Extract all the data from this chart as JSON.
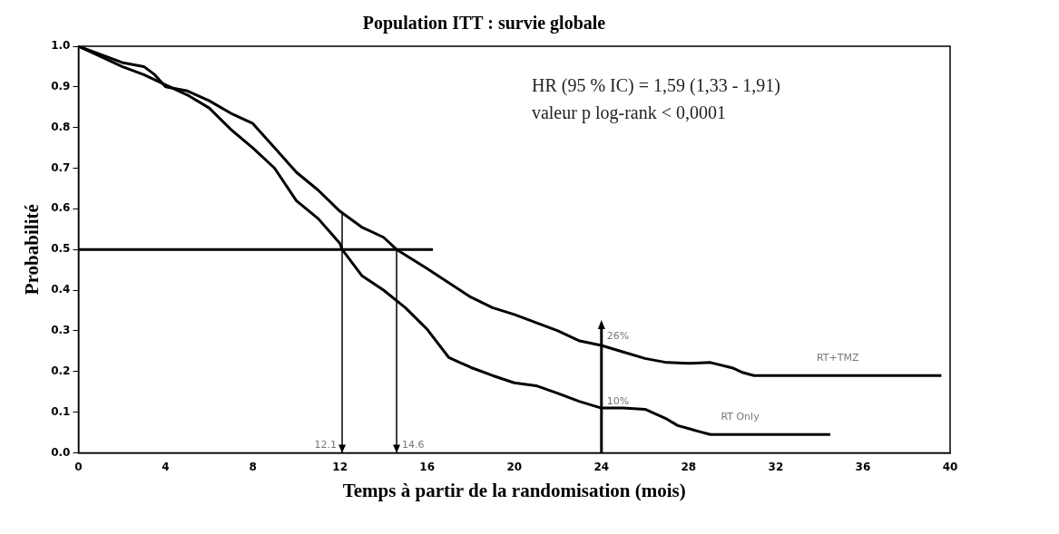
{
  "chart_data": {
    "type": "line",
    "title": "Population ITT : survie globale",
    "xlabel": "Temps à partir de la randomisation (mois)",
    "ylabel": "Probabilité",
    "xlim": [
      0,
      40
    ],
    "xticks": [
      0,
      4,
      8,
      12,
      16,
      20,
      24,
      28,
      32,
      36,
      40
    ],
    "ylim": [
      0,
      1
    ],
    "yticks": [
      {
        "value": 0,
        "label": "0.0"
      },
      {
        "value": 0.1,
        "label": "0.1"
      },
      {
        "value": 0.2,
        "label": "0.2"
      },
      {
        "value": 0.3,
        "label": "0.3"
      },
      {
        "value": 0.4,
        "label": "0.4"
      },
      {
        "value": 0.5,
        "label": "0.5"
      },
      {
        "value": 0.6,
        "label": "0.6"
      },
      {
        "value": 0.7,
        "label": "0.7"
      },
      {
        "value": 0.8,
        "label": "0.8"
      },
      {
        "value": 0.9,
        "label": "0.9"
      },
      {
        "value": 1,
        "label": "1.0"
      }
    ],
    "grid": false,
    "legend": false,
    "marker": "none",
    "line_style": "solid",
    "series": [
      {
        "name": "RT+TMZ",
        "color": "#000000",
        "x": [
          0,
          1,
          2,
          3,
          3.5,
          4,
          5,
          6,
          7,
          8,
          9,
          10,
          11,
          12,
          13,
          14,
          14.6,
          16,
          17,
          18,
          19,
          20,
          21,
          22,
          23,
          24,
          25,
          26,
          27,
          28,
          29,
          30,
          30.5,
          31,
          35,
          39.6
        ],
        "values": [
          1,
          0.98,
          0.96,
          0.95,
          0.93,
          0.9,
          0.89,
          0.866,
          0.835,
          0.81,
          0.75,
          0.69,
          0.646,
          0.594,
          0.555,
          0.53,
          0.5,
          0.453,
          0.418,
          0.383,
          0.357,
          0.34,
          0.32,
          0.3,
          0.275,
          0.264,
          0.248,
          0.232,
          0.222,
          0.22,
          0.222,
          0.209,
          0.197,
          0.19,
          0.19,
          0.19
        ]
      },
      {
        "name": "RT Only",
        "color": "#000000",
        "x": [
          0,
          1,
          2,
          3,
          4,
          5,
          6,
          7,
          8,
          9,
          10,
          11,
          12,
          12.1,
          13,
          14,
          15,
          16,
          17,
          18,
          19,
          20,
          21,
          22,
          23,
          24,
          25,
          26,
          27,
          27.5,
          28.5,
          29,
          34.5
        ],
        "values": [
          1,
          0.975,
          0.95,
          0.93,
          0.905,
          0.88,
          0.848,
          0.795,
          0.75,
          0.7,
          0.62,
          0.576,
          0.515,
          0.5,
          0.436,
          0.4,
          0.357,
          0.304,
          0.234,
          0.21,
          0.19,
          0.172,
          0.165,
          0.146,
          0.126,
          0.11,
          0.11,
          0.107,
          0.083,
          0.067,
          0.052,
          0.045,
          0.045
        ]
      }
    ],
    "ref_lines": [
      {
        "axis": "y",
        "value": 0.5
      },
      {
        "axis": "x",
        "value": 12.1,
        "label": "12.1"
      },
      {
        "axis": "x",
        "value": 14.6,
        "label": "14.6"
      },
      {
        "axis": "x",
        "value": 24
      }
    ],
    "annotations": [
      "HR (95 % IC) = 1,59 (1,33 - 1,91)",
      "valeur p log-rank < 0,0001",
      {
        "text": "26%",
        "x": 24,
        "y": 0.26
      },
      {
        "text": "10%",
        "x": 24,
        "y": 0.1
      }
    ]
  }
}
